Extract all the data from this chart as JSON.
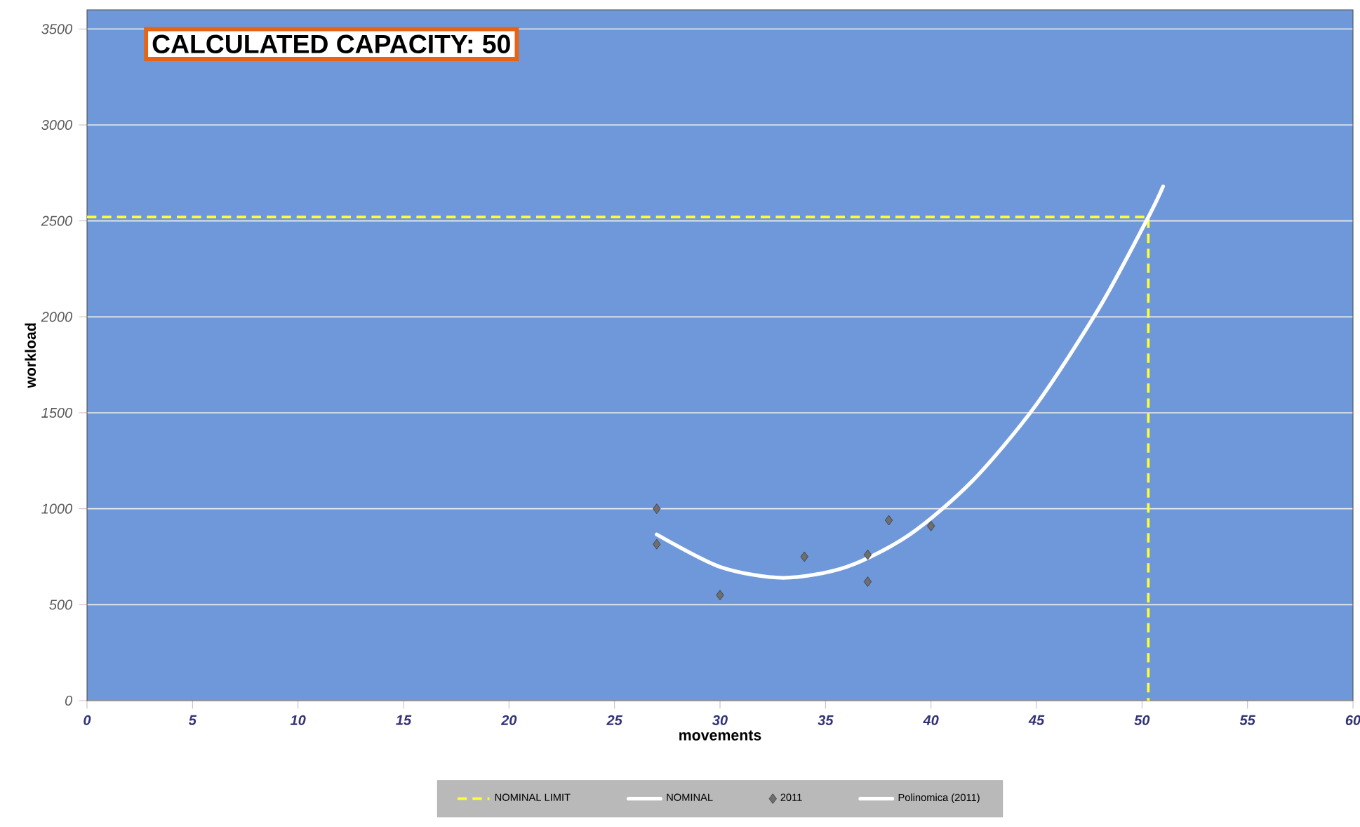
{
  "chart_data": {
    "type": "scatter",
    "xlabel": "movements",
    "ylabel": "workload",
    "annotations": [
      "CALCULATED CAPACITY: 50"
    ],
    "xlim": [
      0,
      60
    ],
    "ylim": [
      0,
      3600
    ],
    "xticks": [
      0,
      5,
      10,
      15,
      20,
      25,
      30,
      35,
      40,
      45,
      50,
      55,
      60
    ],
    "yticks": [
      0,
      500,
      1000,
      1500,
      2000,
      2500,
      3000,
      3500
    ],
    "grid": "y",
    "legend": "bottom",
    "series": [
      {
        "name": "NOMINAL LIMIT",
        "type": "line",
        "line_style": "dashed",
        "color": "#ffff33",
        "x": [
          0,
          50.3,
          50.3
        ],
        "values": [
          2520,
          2520,
          0
        ]
      },
      {
        "name": "NOMINAL",
        "type": "line",
        "color": "#ffffff"
      },
      {
        "name": "2011",
        "marker": "diamond",
        "color": "#6e6e6e",
        "x": [
          27,
          27,
          30,
          34,
          37,
          37,
          38,
          40
        ],
        "values": [
          1000,
          815,
          550,
          750,
          760,
          620,
          940,
          910
        ]
      },
      {
        "name": "Polinomica (2011)",
        "type": "line",
        "color": "#ffffff",
        "x": [
          27,
          30,
          33,
          36,
          39,
          42,
          45,
          48,
          50.3,
          51
        ],
        "values": [
          866,
          697,
          640,
          697,
          866,
          1149,
          1544,
          2052,
          2520,
          2680
        ]
      }
    ]
  }
}
